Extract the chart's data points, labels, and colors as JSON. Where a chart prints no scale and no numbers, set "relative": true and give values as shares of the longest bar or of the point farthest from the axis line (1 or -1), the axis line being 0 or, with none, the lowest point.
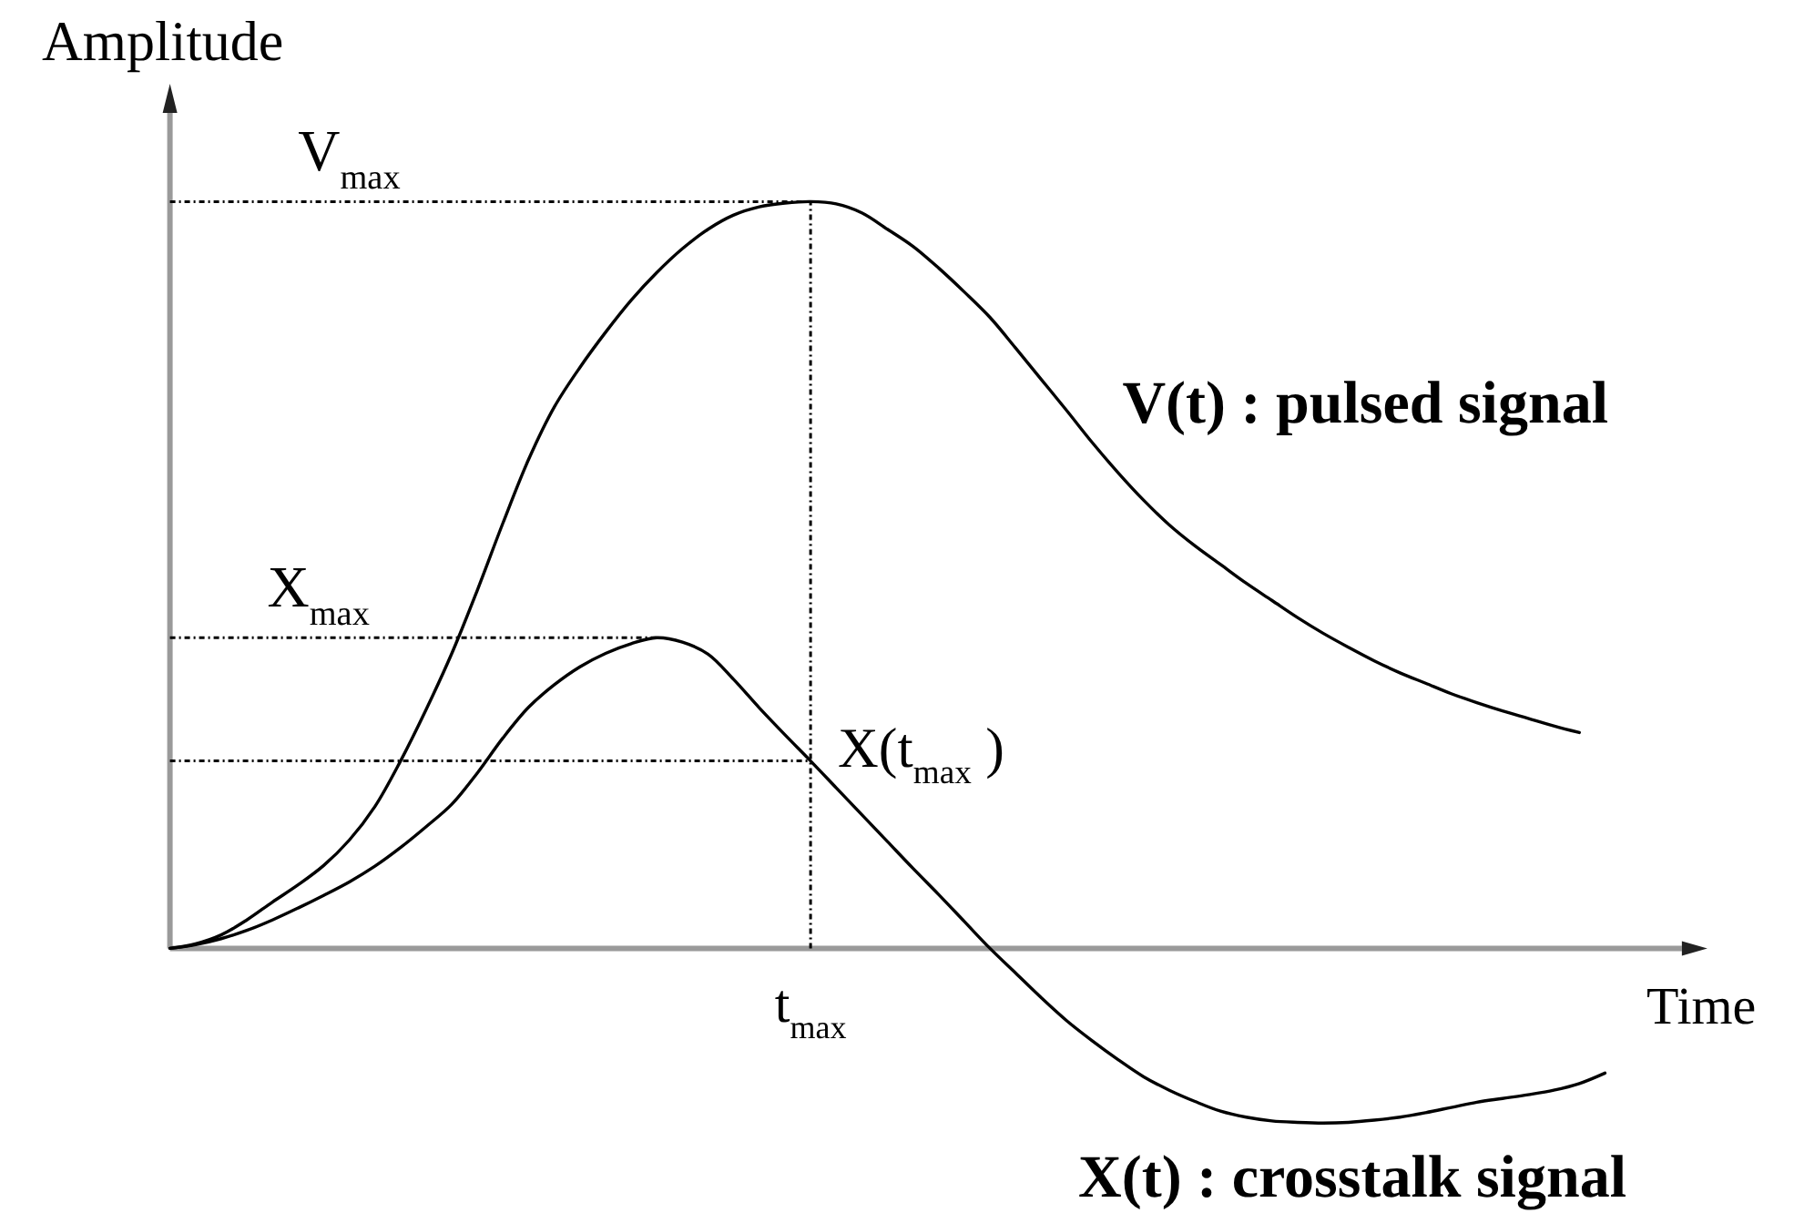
{
  "chart_data": {
    "type": "line",
    "xlabel": "Time",
    "ylabel": "Amplitude",
    "relative": true,
    "categories": [
      null,
      null,
      null,
      null,
      null,
      null,
      null,
      null,
      null,
      null,
      null,
      null,
      null,
      null,
      null,
      null,
      null,
      null,
      null,
      null,
      null,
      null,
      null,
      null,
      null,
      null,
      null,
      null,
      null,
      null,
      null,
      null,
      null,
      null,
      null,
      null,
      null,
      null,
      null,
      null,
      null,
      null,
      null,
      null,
      null,
      null,
      null,
      null,
      null,
      null,
      null,
      null,
      null,
      null,
      null,
      null,
      null,
      null,
      null,
      null
    ],
    "series": [
      {
        "name": "V(t) : pulsed signal",
        "color": "#000000",
        "values": [
          0,
          0.006,
          0.018,
          0.038,
          0.062,
          0.085,
          0.111,
          0.145,
          0.19,
          0.251,
          0.32,
          0.395,
          0.48,
          0.57,
          0.655,
          0.725,
          0.778,
          0.825,
          0.868,
          0.905,
          0.937,
          0.963,
          0.982,
          0.993,
          0.998,
          1,
          0.997,
          0.985,
          0.963,
          0.94,
          0.911,
          0.879,
          0.845,
          0.804,
          0.762,
          0.72,
          0.677,
          0.637,
          0.6,
          0.567,
          0.539,
          0.514,
          0.489,
          0.466,
          0.443,
          0.422,
          0.403,
          0.385,
          0.369,
          0.355,
          0.341,
          0.329,
          0.318,
          0.308,
          0.298,
          0.289,
          null,
          null,
          null,
          null
        ]
      },
      {
        "name": "X(t) : crosstalk signal",
        "color": "#000000",
        "values": [
          0,
          0.005,
          0.013,
          0.024,
          0.038,
          0.054,
          0.071,
          0.089,
          0.11,
          0.135,
          0.163,
          0.193,
          0.235,
          0.282,
          0.323,
          0.353,
          0.377,
          0.395,
          0.408,
          0.416,
          0.41,
          0.394,
          0.36,
          0.322,
          0.286,
          0.251,
          0.215,
          0.179,
          0.143,
          0.107,
          0.072,
          0.036,
          0,
          -0.033,
          -0.066,
          -0.097,
          -0.124,
          -0.149,
          -0.172,
          -0.19,
          -0.205,
          -0.218,
          -0.226,
          -0.231,
          -0.233,
          -0.234,
          -0.233,
          -0.23,
          -0.226,
          -0.22,
          -0.213,
          -0.206,
          -0.201,
          -0.196,
          -0.19,
          -0.181,
          -0.167,
          null,
          null,
          null
        ]
      }
    ],
    "ref_lines": [
      {
        "axis": "y",
        "value": 1,
        "label": "V$_{max}$",
        "line_style": "dotted"
      },
      {
        "axis": "y",
        "value": 0.416,
        "label": "X$_{max}$",
        "line_style": "dotted"
      },
      {
        "axis": "y",
        "value": 0.251,
        "line_style": "dotted"
      }
    ],
    "annotations": [
      "t$_{max}$",
      "X(t$_{max}$ )"
    ]
  }
}
